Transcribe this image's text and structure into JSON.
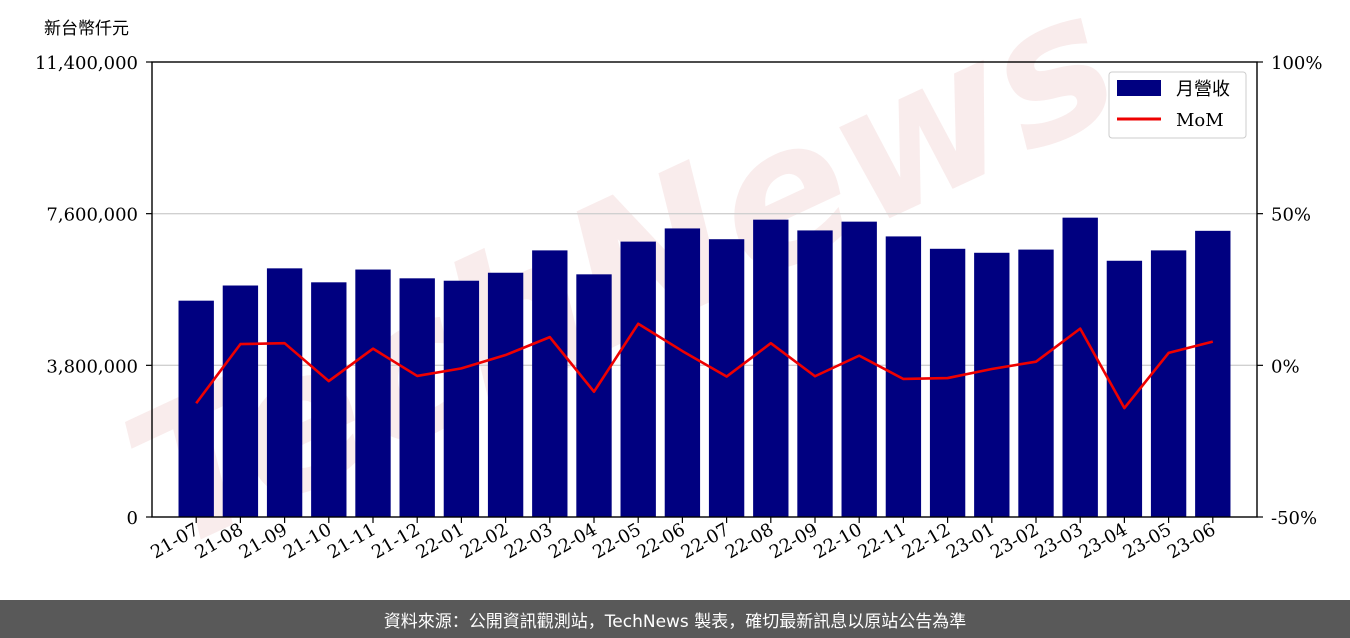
{
  "unit_label": "新台幣仟元",
  "footer_text": "資料來源：公開資訊觀測站，TechNews 製表，確切最新訊息以原站公告為準",
  "watermark": "TechNews",
  "colors": {
    "bar": "#000080",
    "line": "#ee0000",
    "grid": "#d0d0d0",
    "footer_bg": "#595959"
  },
  "chart_data": {
    "type": "bar+line",
    "categories": [
      "21-07",
      "21-08",
      "21-09",
      "21-10",
      "21-11",
      "21-12",
      "22-01",
      "22-02",
      "22-03",
      "22-04",
      "22-05",
      "22-06",
      "22-07",
      "22-08",
      "22-09",
      "22-10",
      "22-11",
      "22-12",
      "23-01",
      "23-02",
      "23-03",
      "23-04",
      "23-05",
      "23-06"
    ],
    "series": [
      {
        "name": "月營收",
        "type": "bar",
        "axis": "left",
        "values": [
          5420000,
          5800000,
          6230000,
          5880000,
          6200000,
          5980000,
          5920000,
          6120000,
          6680000,
          6080000,
          6900000,
          7230000,
          6960000,
          7450000,
          7180000,
          7400000,
          7030000,
          6720000,
          6620000,
          6700000,
          7500000,
          6420000,
          6680000,
          7170000
        ]
      },
      {
        "name": "MoM",
        "type": "line",
        "axis": "right",
        "values": [
          -12.5,
          7,
          7.3,
          -5.2,
          5.5,
          -3.5,
          -1,
          3.4,
          9.3,
          -8.7,
          13.7,
          4.7,
          -3.7,
          7.3,
          -3.6,
          3.2,
          -4.5,
          -4.2,
          -1.2,
          1.2,
          12.1,
          -14.1,
          4.1,
          7.8
        ]
      }
    ],
    "y_left": {
      "ticks": [
        0,
        3800000,
        7600000,
        11400000
      ],
      "tick_labels": [
        "0",
        "3,800,000",
        "7,600,000",
        "11,400,000"
      ],
      "ylim": [
        0,
        11400000
      ]
    },
    "y_right": {
      "ticks": [
        -50,
        0,
        50,
        100
      ],
      "tick_labels": [
        "-50%",
        "0%",
        "50%",
        "100%"
      ],
      "ylim": [
        -50,
        100
      ]
    },
    "grid": "horizontal",
    "legend_position": "top-right",
    "legend": [
      "月營收",
      "MoM"
    ]
  }
}
